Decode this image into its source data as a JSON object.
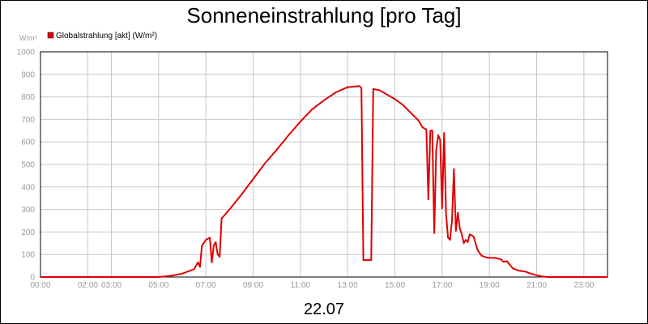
{
  "chart_data": {
    "type": "line",
    "title": "Sonneneinstrahlung [pro Tag]",
    "date_label": "22.07",
    "y_unit": "W/m²",
    "legend": {
      "label": "Globalstrahlung [akt] (W/m²)",
      "placement": "top-left",
      "color": "#e00000"
    },
    "ylim": [
      0,
      1000
    ],
    "xlim": [
      "00:00",
      "24:00"
    ],
    "grid": true,
    "y_ticks": [
      "0",
      "100",
      "200",
      "300",
      "400",
      "500",
      "600",
      "700",
      "800",
      "900",
      "1000"
    ],
    "x_ticks": [
      {
        "label": "00:00",
        "t": "00:00"
      },
      {
        "label": "02:00",
        "t": "02:00"
      },
      {
        "label": "03:00",
        "t": "03:00"
      },
      {
        "label": "05:00",
        "t": "05:00"
      },
      {
        "label": "07:00",
        "t": "07:00"
      },
      {
        "label": "09:00",
        "t": "09:00"
      },
      {
        "label": "11:00",
        "t": "11:00"
      },
      {
        "label": "13:00",
        "t": "13:00"
      },
      {
        "label": "15:00",
        "t": "15:00"
      },
      {
        "label": "17:00",
        "t": "17:00"
      },
      {
        "label": "19:00",
        "t": "19:00"
      },
      {
        "label": "21:00",
        "t": "21:00"
      },
      {
        "label": "23:00",
        "t": "23:00"
      }
    ],
    "series": [
      {
        "name": "Globalstrahlung [akt] (W/m²)",
        "color": "#e00000",
        "points": [
          [
            "00:00",
            0
          ],
          [
            "05:00",
            0
          ],
          [
            "05:30",
            5
          ],
          [
            "06:00",
            15
          ],
          [
            "06:30",
            35
          ],
          [
            "06:40",
            65
          ],
          [
            "06:45",
            45
          ],
          [
            "06:50",
            140
          ],
          [
            "07:00",
            165
          ],
          [
            "07:10",
            175
          ],
          [
            "07:15",
            65
          ],
          [
            "07:20",
            140
          ],
          [
            "07:25",
            155
          ],
          [
            "07:30",
            100
          ],
          [
            "07:35",
            90
          ],
          [
            "07:40",
            260
          ],
          [
            "08:00",
            300
          ],
          [
            "08:30",
            365
          ],
          [
            "09:00",
            435
          ],
          [
            "09:30",
            505
          ],
          [
            "10:00",
            565
          ],
          [
            "10:30",
            630
          ],
          [
            "11:00",
            690
          ],
          [
            "11:30",
            745
          ],
          [
            "12:00",
            785
          ],
          [
            "12:30",
            820
          ],
          [
            "13:00",
            843
          ],
          [
            "13:30",
            848
          ],
          [
            "13:35",
            840
          ],
          [
            "13:40",
            75
          ],
          [
            "14:00",
            75
          ],
          [
            "14:05",
            835
          ],
          [
            "14:20",
            830
          ],
          [
            "14:40",
            810
          ],
          [
            "15:00",
            790
          ],
          [
            "15:20",
            765
          ],
          [
            "15:40",
            730
          ],
          [
            "16:00",
            695
          ],
          [
            "16:10",
            665
          ],
          [
            "16:20",
            655
          ],
          [
            "16:25",
            345
          ],
          [
            "16:30",
            650
          ],
          [
            "16:35",
            650
          ],
          [
            "16:40",
            195
          ],
          [
            "16:45",
            560
          ],
          [
            "16:50",
            630
          ],
          [
            "16:55",
            610
          ],
          [
            "17:00",
            305
          ],
          [
            "17:05",
            640
          ],
          [
            "17:10",
            280
          ],
          [
            "17:15",
            175
          ],
          [
            "17:20",
            165
          ],
          [
            "17:25",
            250
          ],
          [
            "17:30",
            480
          ],
          [
            "17:35",
            205
          ],
          [
            "17:40",
            285
          ],
          [
            "17:45",
            215
          ],
          [
            "17:50",
            190
          ],
          [
            "17:55",
            150
          ],
          [
            "18:00",
            165
          ],
          [
            "18:05",
            155
          ],
          [
            "18:10",
            190
          ],
          [
            "18:20",
            180
          ],
          [
            "18:30",
            120
          ],
          [
            "18:40",
            95
          ],
          [
            "18:50",
            88
          ],
          [
            "19:00",
            85
          ],
          [
            "19:15",
            85
          ],
          [
            "19:30",
            78
          ],
          [
            "19:35",
            68
          ],
          [
            "19:45",
            70
          ],
          [
            "19:50",
            58
          ],
          [
            "20:00",
            38
          ],
          [
            "20:15",
            28
          ],
          [
            "20:30",
            25
          ],
          [
            "20:45",
            15
          ],
          [
            "21:00",
            8
          ],
          [
            "21:15",
            2
          ],
          [
            "21:30",
            0
          ],
          [
            "24:00",
            0
          ]
        ]
      }
    ]
  }
}
